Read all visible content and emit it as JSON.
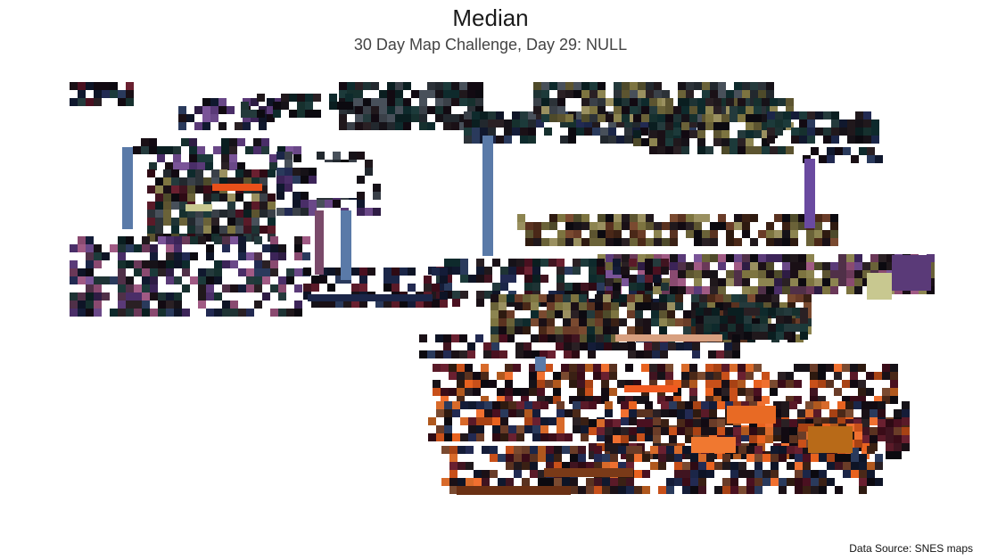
{
  "title": "Median",
  "subtitle": "30 Day Map Challenge, Day 29: NULL",
  "caption": "Data Source: SNES maps",
  "palette": {
    "background": "#ffffff",
    "dark_teal": "#0e2a2c",
    "navy": "#1b2648",
    "maroon": "#4a1020",
    "olive": "#7d7440",
    "purple": "#5a3a78",
    "steel_blue": "#5a7aa8",
    "orange": "#e8621f",
    "brown": "#5a3220",
    "near_black": "#120a12"
  }
}
